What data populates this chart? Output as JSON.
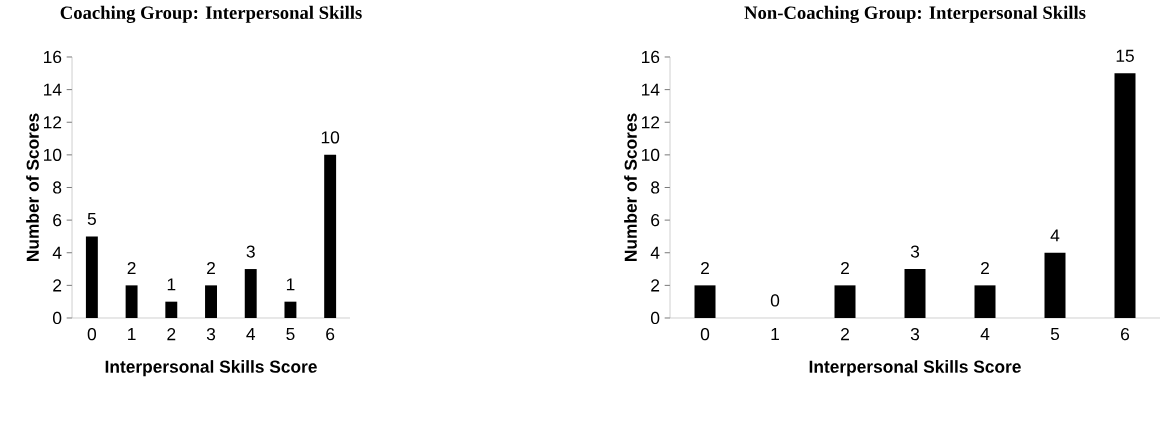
{
  "chart_data": [
    {
      "type": "bar",
      "title": "Coaching Group: Interpersonal Skills",
      "xlabel": "Interpersonal Skills Score",
      "ylabel": "Number of Scores",
      "categories": [
        "0",
        "1",
        "2",
        "3",
        "4",
        "5",
        "6"
      ],
      "values": [
        5,
        2,
        1,
        2,
        3,
        1,
        10
      ],
      "color": "#000000",
      "ylim": [
        0,
        16
      ],
      "yticks": [
        0,
        2,
        4,
        6,
        8,
        10,
        12,
        14,
        16
      ],
      "data_labels": true,
      "grid": false
    },
    {
      "type": "bar",
      "title": "Non-Coaching Group: Interpersonal Skills",
      "xlabel": "Interpersonal Skills Score",
      "ylabel": "Number of Scores",
      "categories": [
        "0",
        "1",
        "2",
        "3",
        "4",
        "5",
        "6"
      ],
      "values": [
        2,
        0,
        2,
        3,
        2,
        4,
        15
      ],
      "color": "#000000",
      "ylim": [
        0,
        16
      ],
      "yticks": [
        0,
        2,
        4,
        6,
        8,
        10,
        12,
        14,
        16
      ],
      "data_labels": true,
      "grid": false
    }
  ]
}
